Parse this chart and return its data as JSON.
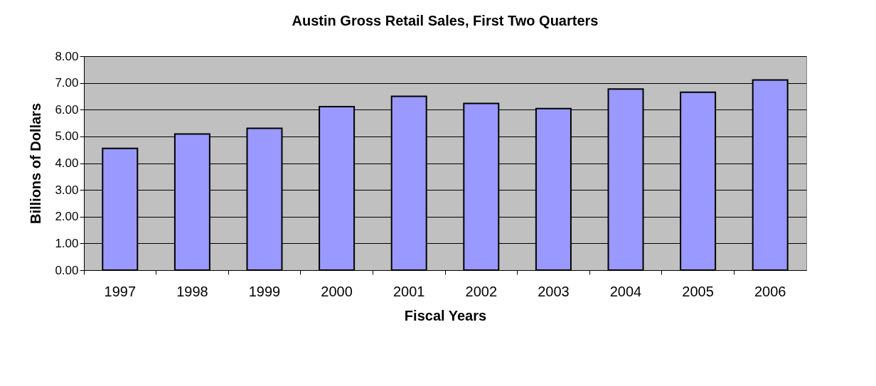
{
  "chart_data": {
    "type": "bar",
    "title": "Austin Gross Retail Sales, First Two Quarters",
    "xlabel": "Fiscal Years",
    "ylabel": "Billions of Dollars",
    "categories": [
      "1997",
      "1998",
      "1999",
      "2000",
      "2001",
      "2002",
      "2003",
      "2004",
      "2005",
      "2006"
    ],
    "values": [
      4.55,
      5.09,
      5.3,
      6.11,
      6.5,
      6.23,
      6.04,
      6.77,
      6.65,
      7.11
    ],
    "color": "#9999ff",
    "ylim": [
      0,
      8
    ],
    "yticks": [
      {
        "value": 0,
        "label": "0.00"
      },
      {
        "value": 1,
        "label": "1.00"
      },
      {
        "value": 2,
        "label": "2.00"
      },
      {
        "value": 3,
        "label": "3.00"
      },
      {
        "value": 4,
        "label": "4.00"
      },
      {
        "value": 5,
        "label": "5.00"
      },
      {
        "value": 6,
        "label": "6.00"
      },
      {
        "value": 7,
        "label": "7.00"
      },
      {
        "value": 8,
        "label": "8.00"
      }
    ],
    "grid": "y"
  }
}
